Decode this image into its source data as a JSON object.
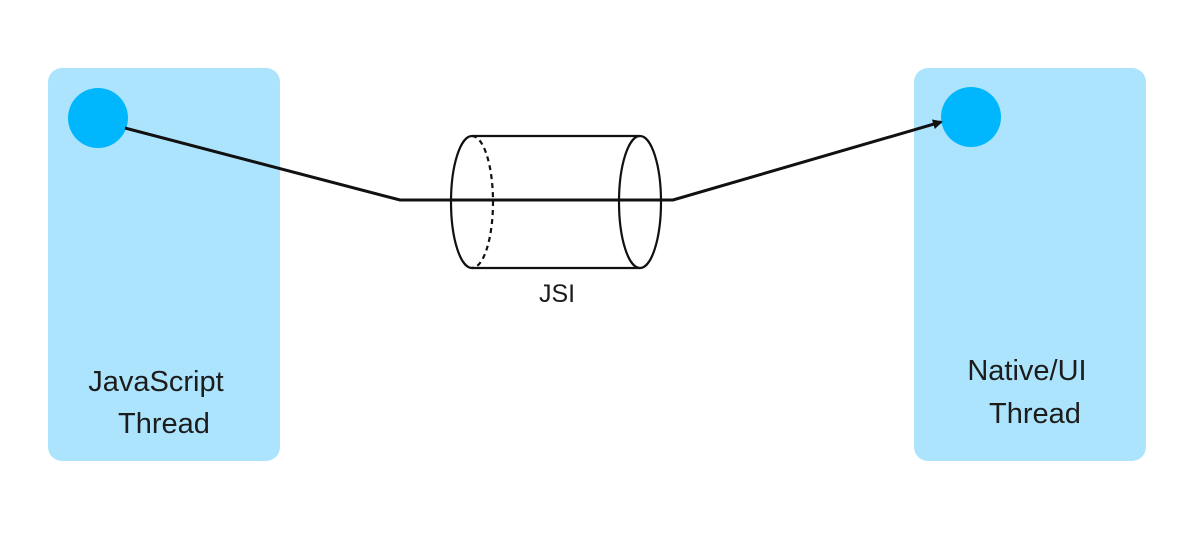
{
  "colors": {
    "box_fill": "#ade4fd",
    "node_fill": "#00b6fc",
    "line": "#111111"
  },
  "left_box": {
    "line1": "JavaScript",
    "line2": "Thread"
  },
  "right_box": {
    "line1": "Native/UI",
    "line2": "Thread"
  },
  "connector": {
    "label": "JSI"
  }
}
